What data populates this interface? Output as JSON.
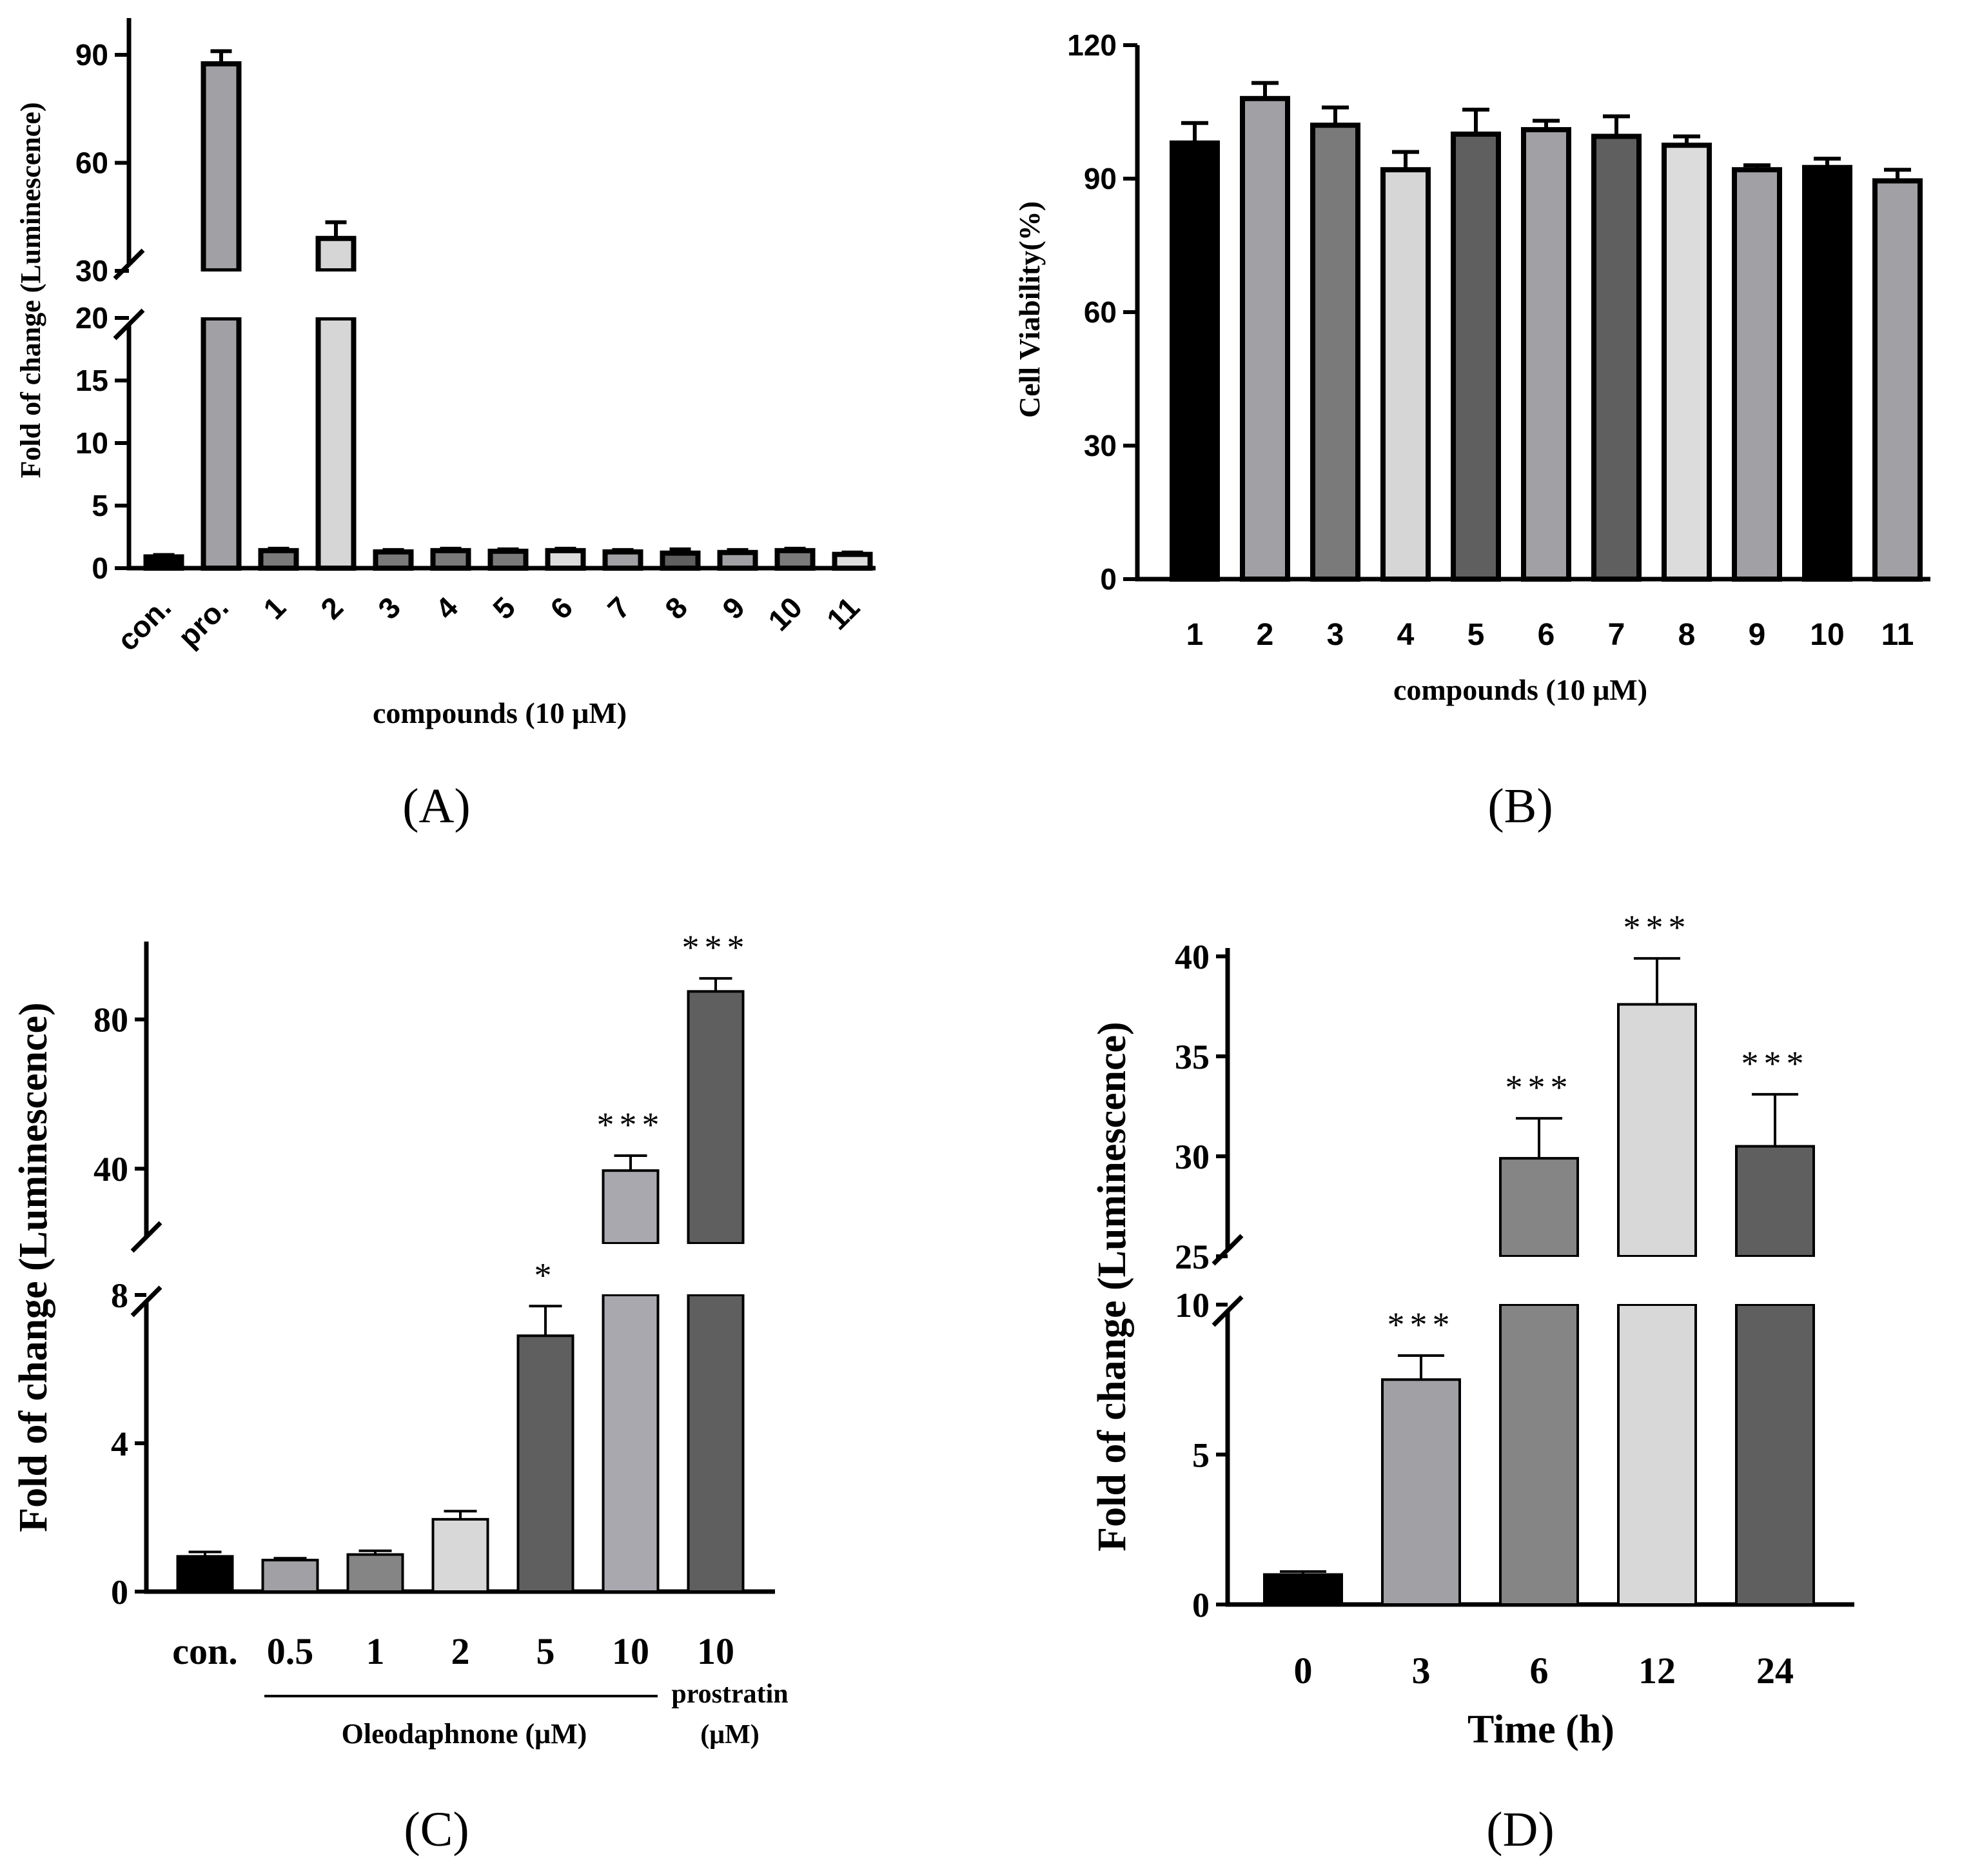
{
  "chart_data": [
    {
      "panel": "A",
      "type": "bar",
      "caption": "(A)",
      "ylabel": "Fold of change (Luminescence)",
      "xlabel": "compounds (10 μM)",
      "categories": [
        "con.",
        "pro.",
        "1",
        "2",
        "3",
        "4",
        "5",
        "6",
        "7",
        "8",
        "9",
        "10",
        "11"
      ],
      "values": [
        0.9,
        87.5,
        1.4,
        39.0,
        1.3,
        1.4,
        1.35,
        1.4,
        1.3,
        1.2,
        1.25,
        1.4,
        1.1
      ],
      "errors": [
        0.15,
        3.5,
        0.15,
        4.5,
        0.15,
        0.15,
        0.15,
        0.15,
        0.15,
        0.3,
        0.2,
        0.15,
        0.15
      ],
      "fills": [
        "#000000",
        "#a0a0a5",
        "#7a7a7a",
        "#d6d6d6",
        "#7a7a7a",
        "#7a7a7a",
        "#7a7a7a",
        "#dcdcdc",
        "#a0a0a5",
        "#5f5f5f",
        "#a0a0a5",
        "#7a7a7a",
        "#dcdcdc"
      ],
      "axis_break": {
        "lower": [
          0,
          20
        ],
        "upper": [
          30,
          100
        ]
      },
      "lower_ticks": [
        0,
        5,
        10,
        15,
        20
      ],
      "upper_ticks": [
        30,
        60,
        90
      ],
      "tick_labels_rotated": true,
      "significance": [
        "",
        "",
        "",
        "",
        "",
        "",
        "",
        "",
        "",
        "",
        "",
        "",
        ""
      ]
    },
    {
      "panel": "B",
      "type": "bar",
      "caption": "(B)",
      "ylabel": "Cell Viability(%)",
      "xlabel": "compounds (10 μM)",
      "categories": [
        "1",
        "2",
        "3",
        "4",
        "5",
        "6",
        "7",
        "8",
        "9",
        "10",
        "11"
      ],
      "values": [
        98,
        108,
        102,
        92,
        100,
        101,
        99.5,
        97.5,
        92,
        92.5,
        89.5
      ],
      "errors": [
        4.5,
        3.5,
        4,
        4,
        5.5,
        2,
        4.5,
        2,
        1,
        2,
        2.5
      ],
      "fills": [
        "#000000",
        "#a0a0a5",
        "#7a7a7a",
        "#d6d6d6",
        "#5f5f5f",
        "#a0a0a5",
        "#5f5f5f",
        "#dcdcdc",
        "#a0a0a5",
        "#000000",
        "#a0a0a5"
      ],
      "ylim": [
        0,
        120
      ],
      "ticks": [
        0,
        30,
        60,
        90,
        120
      ],
      "significance": [
        "",
        "",
        "",
        "",
        "",
        "",
        "",
        "",
        "",
        "",
        ""
      ]
    },
    {
      "panel": "C",
      "type": "bar",
      "caption": "(C)",
      "ylabel": "Fold of change (Luminescence)",
      "xlabel": "Oleodaphnone (μM)",
      "xlabel_right": "prostratin",
      "xlabel_right2": "(μM)",
      "categories": [
        "con.",
        "0.5",
        "1",
        "2",
        "5",
        "10",
        "10"
      ],
      "values": [
        0.95,
        0.85,
        1.0,
        1.95,
        6.9,
        39.5,
        87.5
      ],
      "errors": [
        0.12,
        0.05,
        0.1,
        0.22,
        0.8,
        4.0,
        3.5
      ],
      "fills": [
        "#000000",
        "#a0a0a5",
        "#858585",
        "#d8d8d8",
        "#5f5f5f",
        "#a8a8ae",
        "#5f5f5f"
      ],
      "axis_break": {
        "lower": [
          0,
          8
        ],
        "upper": [
          20,
          100
        ]
      },
      "lower_ticks": [
        0,
        4,
        8
      ],
      "upper_ticks": [
        40,
        80
      ],
      "significance": [
        "",
        "",
        "",
        "",
        "*",
        "***",
        "***"
      ]
    },
    {
      "panel": "D",
      "type": "bar",
      "caption": "(D)",
      "ylabel": "Fold of change (Luminescence)",
      "xlabel": "Time (h)",
      "categories": [
        "0",
        "3",
        "6",
        "12",
        "24"
      ],
      "values": [
        1.0,
        7.5,
        29.9,
        37.6,
        30.5
      ],
      "errors": [
        0.1,
        0.8,
        2.0,
        2.3,
        2.6
      ],
      "fills": [
        "#000000",
        "#a0a0a5",
        "#858585",
        "#d8d8d8",
        "#5f5f5f"
      ],
      "axis_break": {
        "lower": [
          0,
          10
        ],
        "upper": [
          25,
          40
        ]
      },
      "lower_ticks": [
        0,
        5,
        10
      ],
      "upper_ticks": [
        25,
        30,
        35,
        40
      ],
      "significance": [
        "",
        "***",
        "***",
        "***",
        "***"
      ]
    }
  ]
}
